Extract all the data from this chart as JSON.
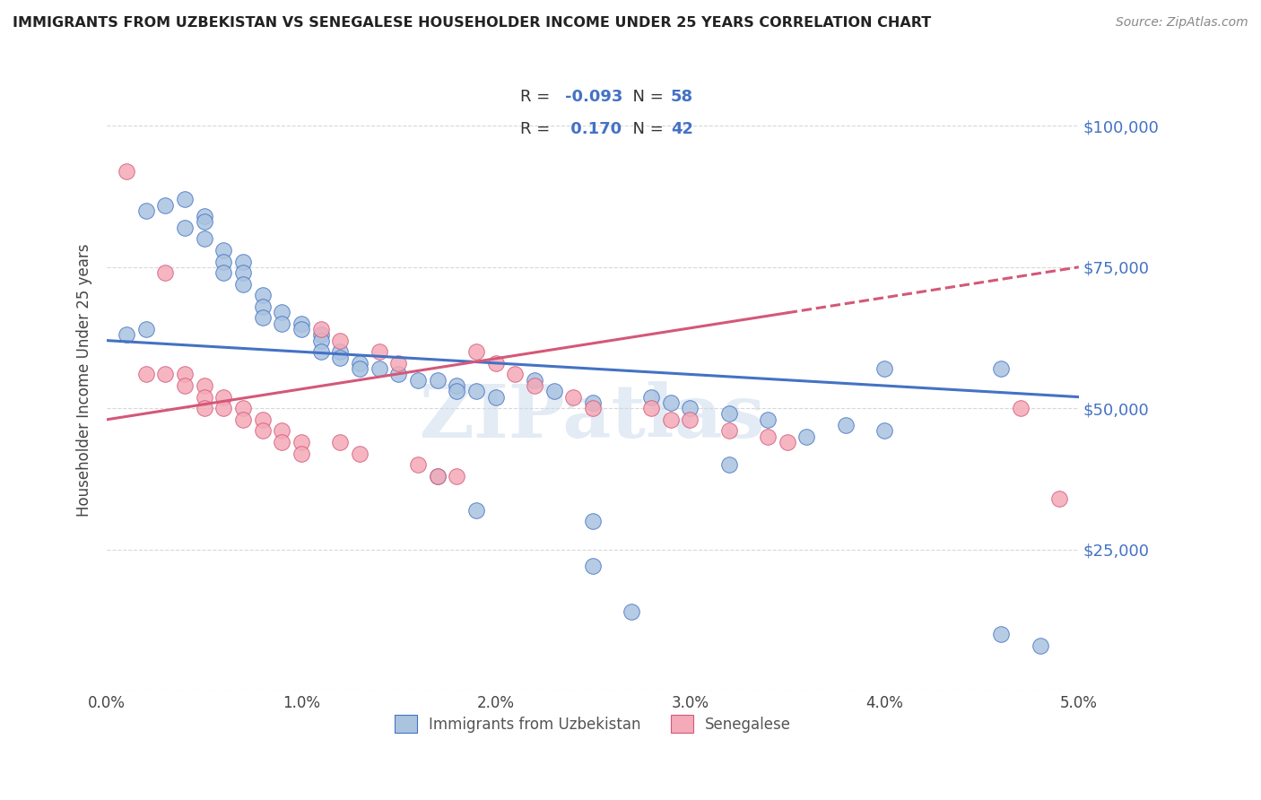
{
  "title": "IMMIGRANTS FROM UZBEKISTAN VS SENEGALESE HOUSEHOLDER INCOME UNDER 25 YEARS CORRELATION CHART",
  "source": "Source: ZipAtlas.com",
  "ylabel": "Householder Income Under 25 years",
  "xmin": 0.0,
  "xmax": 0.05,
  "ymin": 0,
  "ymax": 110000,
  "yticks": [
    0,
    25000,
    50000,
    75000,
    100000
  ],
  "ytick_labels": [
    "",
    "$25,000",
    "$50,000",
    "$75,000",
    "$100,000"
  ],
  "xtick_labels": [
    "0.0%",
    "1.0%",
    "2.0%",
    "3.0%",
    "4.0%",
    "5.0%"
  ],
  "watermark": "ZIPatlas",
  "legend_r_uzbek": "-0.093",
  "legend_n_uzbek": "58",
  "legend_r_senegal": "0.170",
  "legend_n_senegal": "42",
  "uzbek_color": "#aac4e0",
  "senegal_color": "#f4aab8",
  "uzbek_edge_color": "#4472c4",
  "senegal_edge_color": "#d45878",
  "uzbek_line_color": "#4472c4",
  "senegal_line_color": "#d45878",
  "background_color": "#ffffff",
  "grid_color": "#d8d8d8",
  "uzbek_x": [
    0.001,
    0.002,
    0.002,
    0.003,
    0.004,
    0.004,
    0.005,
    0.005,
    0.005,
    0.006,
    0.006,
    0.006,
    0.007,
    0.007,
    0.007,
    0.008,
    0.008,
    0.008,
    0.009,
    0.009,
    0.01,
    0.01,
    0.011,
    0.011,
    0.011,
    0.012,
    0.012,
    0.013,
    0.013,
    0.014,
    0.015,
    0.016,
    0.017,
    0.018,
    0.018,
    0.019,
    0.02,
    0.022,
    0.023,
    0.025,
    0.028,
    0.029,
    0.03,
    0.032,
    0.034,
    0.038,
    0.04,
    0.025,
    0.025,
    0.027,
    0.017,
    0.019,
    0.032,
    0.036,
    0.04,
    0.046,
    0.046,
    0.048
  ],
  "uzbek_y": [
    63000,
    64000,
    85000,
    86000,
    87000,
    82000,
    84000,
    83000,
    80000,
    78000,
    76000,
    74000,
    76000,
    74000,
    72000,
    70000,
    68000,
    66000,
    67000,
    65000,
    65000,
    64000,
    63000,
    62000,
    60000,
    60000,
    59000,
    58000,
    57000,
    57000,
    56000,
    55000,
    55000,
    54000,
    53000,
    53000,
    52000,
    55000,
    53000,
    51000,
    52000,
    51000,
    50000,
    49000,
    48000,
    47000,
    46000,
    30000,
    22000,
    14000,
    38000,
    32000,
    40000,
    45000,
    57000,
    57000,
    10000,
    8000
  ],
  "senegal_x": [
    0.001,
    0.002,
    0.003,
    0.003,
    0.004,
    0.004,
    0.005,
    0.005,
    0.005,
    0.006,
    0.006,
    0.007,
    0.007,
    0.008,
    0.008,
    0.009,
    0.009,
    0.01,
    0.01,
    0.011,
    0.012,
    0.012,
    0.013,
    0.014,
    0.015,
    0.016,
    0.017,
    0.018,
    0.019,
    0.02,
    0.021,
    0.022,
    0.024,
    0.025,
    0.028,
    0.029,
    0.03,
    0.032,
    0.034,
    0.035,
    0.047,
    0.049
  ],
  "senegal_y": [
    92000,
    56000,
    56000,
    74000,
    56000,
    54000,
    54000,
    52000,
    50000,
    52000,
    50000,
    50000,
    48000,
    48000,
    46000,
    46000,
    44000,
    44000,
    42000,
    64000,
    62000,
    44000,
    42000,
    60000,
    58000,
    40000,
    38000,
    38000,
    60000,
    58000,
    56000,
    54000,
    52000,
    50000,
    50000,
    48000,
    48000,
    46000,
    45000,
    44000,
    50000,
    34000
  ]
}
